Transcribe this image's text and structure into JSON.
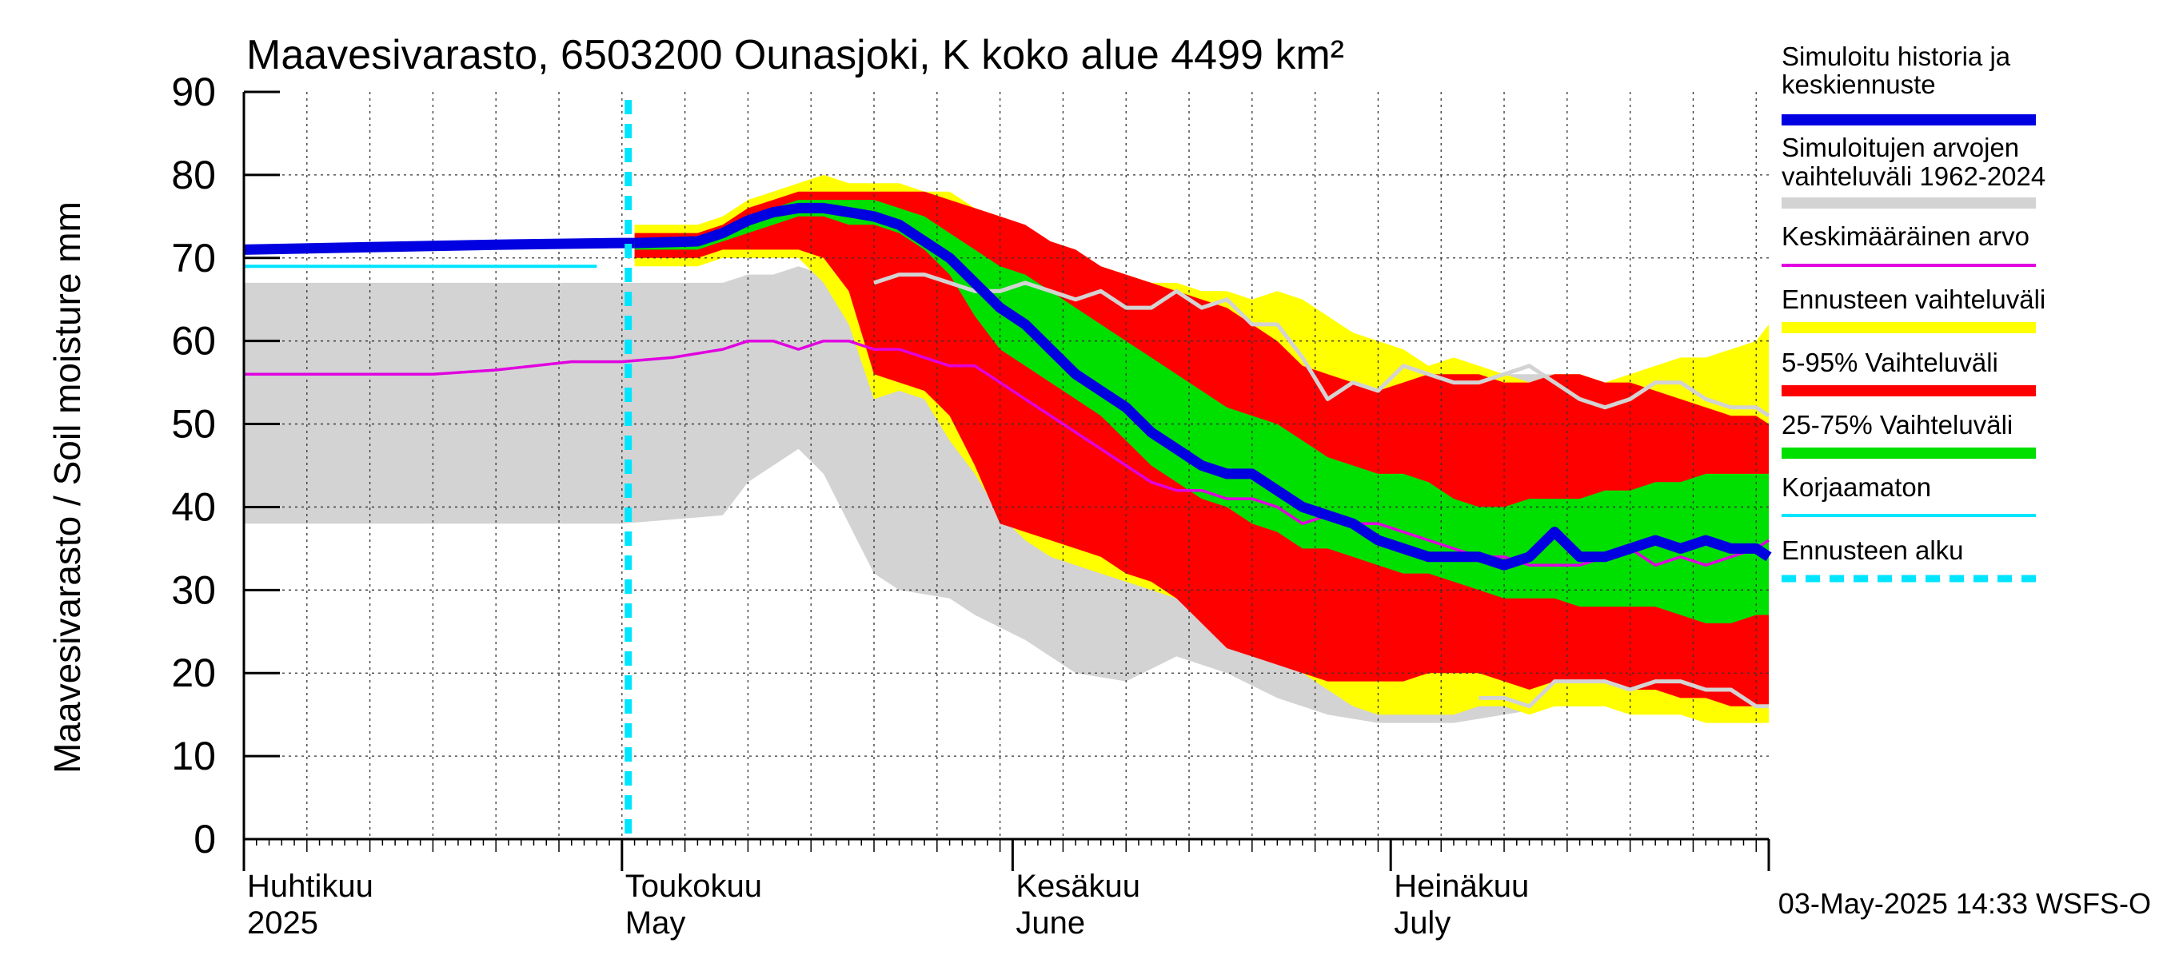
{
  "chart_data": {
    "type": "area",
    "title": "Maavesivarasto, 6503200 Ounasjoki, K koko alue 4499 km²",
    "ylabel": "Maavesivarasto / Soil moisture   mm",
    "ylim": [
      0,
      90
    ],
    "yticks": [
      "0",
      "10",
      "20",
      "30",
      "40",
      "50",
      "60",
      "70",
      "80",
      "90"
    ],
    "x_unit": "day index from 2025-04-01",
    "xlim": [
      0,
      121
    ],
    "month_labels": [
      {
        "fi": "Huhtikuu",
        "en": "2025",
        "day": 0
      },
      {
        "fi": "Toukokuu",
        "en": "May",
        "day": 30
      },
      {
        "fi": "Kesäkuu",
        "en": "June",
        "day": 61
      },
      {
        "fi": "Heinäkuu",
        "en": "July",
        "day": 91
      }
    ],
    "forecast_start_day": 30.5,
    "timestamp": "03-May-2025 14:33 WSFS-O",
    "colors": {
      "simulated": "#0000e0",
      "historical_range": "#d3d3d3",
      "mean": "#e000e0",
      "forecast_range": "#ffff00",
      "p5_95": "#ff0000",
      "p25_75": "#00e000",
      "uncorrected": "#00e5ff",
      "forecast_start": "#00e5ff"
    },
    "legend": [
      {
        "key": "simulated",
        "label1": "Simuloitu historia ja",
        "label2": "keskiennuste"
      },
      {
        "key": "historical_range",
        "label1": "Simuloitujen arvojen",
        "label2": "vaihteluväli 1962-2024"
      },
      {
        "key": "mean",
        "label1": "Keskimääräinen arvo",
        "label2": ""
      },
      {
        "key": "forecast_range",
        "label1": "Ennusteen vaihteluväli",
        "label2": ""
      },
      {
        "key": "p5_95",
        "label1": "5-95% Vaihteluväli",
        "label2": ""
      },
      {
        "key": "p25_75",
        "label1": "25-75% Vaihteluväli",
        "label2": ""
      },
      {
        "key": "uncorrected",
        "label1": "Korjaamaton",
        "label2": ""
      },
      {
        "key": "forecast_start",
        "label1": "Ennusteen alku",
        "label2": ""
      }
    ],
    "series": {
      "historical_range": {
        "x": [
          0,
          10,
          20,
          30,
          38,
          40,
          42,
          44,
          46,
          50,
          52,
          56,
          58,
          62,
          66,
          70,
          74,
          78,
          82,
          86,
          90,
          94,
          96,
          100,
          104,
          108,
          112,
          116,
          120,
          121
        ],
        "upper": [
          67,
          67,
          67,
          67,
          67,
          68,
          68,
          69,
          68,
          67,
          66,
          66,
          66,
          66,
          65,
          65,
          65,
          64,
          63,
          60,
          55,
          55,
          54,
          56,
          56,
          55,
          54,
          53,
          51,
          51
        ],
        "lower": [
          38,
          38,
          38,
          38,
          39,
          43,
          45,
          47,
          44,
          32,
          30,
          29,
          27,
          24,
          20,
          19,
          22,
          20,
          17,
          15,
          14,
          14,
          14,
          15,
          16,
          16,
          17,
          16,
          15,
          15
        ]
      },
      "forecast_range": {
        "x": [
          31,
          36,
          38,
          40,
          42,
          44,
          46,
          48,
          50,
          52,
          54,
          56,
          58,
          60,
          62,
          64,
          66,
          68,
          70,
          72,
          74,
          76,
          78,
          80,
          82,
          84,
          86,
          88,
          90,
          92,
          94,
          96,
          98,
          100,
          102,
          104,
          106,
          108,
          110,
          112,
          114,
          116,
          118,
          120,
          121
        ],
        "upper": [
          74,
          74,
          75,
          77,
          78,
          79,
          80,
          79,
          79,
          79,
          78,
          78,
          76,
          75,
          73,
          71,
          70,
          69,
          68,
          67,
          67,
          66,
          66,
          65,
          66,
          65,
          63,
          61,
          60,
          59,
          57,
          58,
          57,
          56,
          55,
          56,
          56,
          55,
          56,
          57,
          58,
          58,
          59,
          60,
          62
        ],
        "lower": [
          69,
          69,
          70,
          70,
          70,
          70,
          67,
          62,
          53,
          54,
          53,
          48,
          44,
          39,
          36,
          34,
          33,
          32,
          31,
          30,
          29,
          28,
          26,
          24,
          22,
          20,
          18,
          16,
          15,
          15,
          15,
          15,
          16,
          16,
          15,
          16,
          16,
          16,
          15,
          15,
          15,
          14,
          14,
          14,
          14
        ]
      },
      "p5_95": {
        "x": [
          31,
          36,
          38,
          40,
          42,
          44,
          46,
          48,
          50,
          52,
          54,
          56,
          58,
          60,
          62,
          64,
          66,
          68,
          70,
          72,
          74,
          76,
          78,
          80,
          82,
          84,
          86,
          88,
          90,
          92,
          94,
          96,
          98,
          100,
          102,
          104,
          106,
          108,
          110,
          112,
          114,
          116,
          118,
          120,
          121
        ],
        "upper": [
          73,
          73,
          74,
          76,
          77,
          78,
          78,
          78,
          78,
          78,
          78,
          77,
          76,
          75,
          74,
          72,
          71,
          69,
          68,
          67,
          66,
          65,
          64,
          62,
          60,
          57,
          56,
          55,
          54,
          55,
          56,
          56,
          56,
          55,
          55,
          56,
          56,
          55,
          55,
          54,
          53,
          52,
          51,
          51,
          50
        ],
        "lower": [
          70,
          70,
          71,
          71,
          71,
          71,
          70,
          66,
          56,
          55,
          54,
          51,
          45,
          38,
          37,
          36,
          35,
          34,
          32,
          31,
          29,
          26,
          23,
          22,
          21,
          20,
          19,
          19,
          19,
          19,
          20,
          20,
          20,
          19,
          18,
          19,
          19,
          19,
          18,
          18,
          17,
          17,
          16,
          16,
          16
        ]
      },
      "p25_75": {
        "x": [
          31,
          36,
          38,
          40,
          42,
          44,
          46,
          48,
          50,
          52,
          54,
          56,
          58,
          60,
          62,
          64,
          66,
          68,
          70,
          72,
          74,
          76,
          78,
          80,
          82,
          84,
          86,
          88,
          90,
          92,
          94,
          96,
          98,
          100,
          102,
          104,
          106,
          108,
          110,
          112,
          114,
          116,
          118,
          120,
          121
        ],
        "upper": [
          72,
          72,
          73,
          75,
          76,
          77,
          77,
          77,
          77,
          76,
          75,
          73,
          71,
          69,
          68,
          66,
          64,
          62,
          60,
          58,
          56,
          54,
          52,
          51,
          50,
          48,
          46,
          45,
          44,
          44,
          43,
          41,
          40,
          40,
          41,
          41,
          41,
          42,
          42,
          43,
          43,
          44,
          44,
          44,
          44
        ],
        "lower": [
          71,
          71,
          72,
          73,
          74,
          75,
          75,
          74,
          74,
          73,
          71,
          68,
          63,
          59,
          57,
          55,
          53,
          51,
          48,
          45,
          43,
          41,
          40,
          38,
          37,
          35,
          35,
          34,
          33,
          32,
          32,
          31,
          30,
          29,
          29,
          29,
          28,
          28,
          28,
          28,
          27,
          26,
          26,
          27,
          27
        ]
      },
      "uncorrected": {
        "x": [
          0,
          10,
          20,
          28
        ],
        "y": [
          69,
          69,
          69,
          69
        ]
      },
      "sim_history": {
        "x": [
          0,
          10,
          20,
          30,
          31
        ],
        "y": [
          71,
          71.3,
          71.6,
          71.8,
          71.8
        ]
      },
      "mean": {
        "x": [
          0,
          10,
          15,
          20,
          26,
          30,
          34,
          38,
          40,
          42,
          44,
          46,
          48,
          50,
          52,
          54,
          56,
          58,
          60,
          62,
          64,
          66,
          68,
          70,
          72,
          74,
          76,
          78,
          80,
          82,
          84,
          86,
          88,
          90,
          92,
          94,
          96,
          98,
          100,
          102,
          104,
          106,
          108,
          110,
          112,
          114,
          116,
          118,
          120,
          121
        ],
        "y": [
          56,
          56,
          56,
          56.5,
          57.5,
          57.5,
          58,
          59,
          60,
          60,
          59,
          60,
          60,
          59,
          59,
          58,
          57,
          57,
          55,
          53,
          51,
          49,
          47,
          45,
          43,
          42,
          42,
          41,
          41,
          40,
          38,
          39,
          38,
          38,
          37,
          36,
          35,
          34,
          34,
          33,
          33,
          33,
          34,
          35,
          33,
          34,
          33,
          34,
          35,
          36
        ]
      },
      "mean_forecast": {
        "x": [
          31,
          36,
          38,
          40,
          42,
          44,
          46,
          48,
          50,
          52,
          54,
          56,
          58,
          60,
          62,
          64,
          66,
          68,
          70,
          72,
          74,
          76,
          78,
          80,
          82,
          84,
          86,
          88,
          90,
          92,
          94,
          96,
          98,
          100,
          102,
          104,
          106,
          108,
          110,
          112,
          114,
          116,
          118,
          120,
          121
        ],
        "y": [
          71.8,
          72,
          73,
          74.5,
          75.5,
          76,
          76,
          75.5,
          75,
          74,
          72,
          70,
          67,
          64,
          62,
          59,
          56,
          54,
          52,
          49,
          47,
          45,
          44,
          44,
          42,
          40,
          39,
          38,
          36,
          35,
          34,
          34,
          34,
          33,
          34,
          37,
          34,
          34,
          35,
          36,
          35,
          36,
          35,
          35,
          34
        ]
      },
      "forecast_median_gray": {
        "x": [
          50,
          52,
          54,
          56,
          58,
          60,
          62,
          64,
          66,
          68,
          70,
          72,
          74,
          76,
          78,
          80,
          82,
          84,
          86,
          88,
          90,
          92,
          94,
          96,
          98,
          100,
          102,
          104,
          106,
          108,
          110,
          112,
          114,
          116,
          118,
          120,
          121
        ],
        "y": [
          67,
          68,
          68,
          67,
          66,
          66,
          67,
          66,
          65,
          66,
          64,
          64,
          66,
          64,
          65,
          62,
          62,
          58,
          53,
          55,
          54,
          57,
          56,
          55,
          55,
          56,
          57,
          55,
          53,
          52,
          53,
          55,
          55,
          53,
          52,
          52,
          51
        ]
      },
      "forecast_lower_gray": {
        "x": [
          98,
          100,
          102,
          104,
          106,
          108,
          110,
          112,
          114,
          116,
          118,
          120,
          121
        ],
        "y": [
          17,
          17,
          16,
          19,
          19,
          19,
          18,
          19,
          19,
          18,
          18,
          16,
          16
        ]
      }
    }
  }
}
